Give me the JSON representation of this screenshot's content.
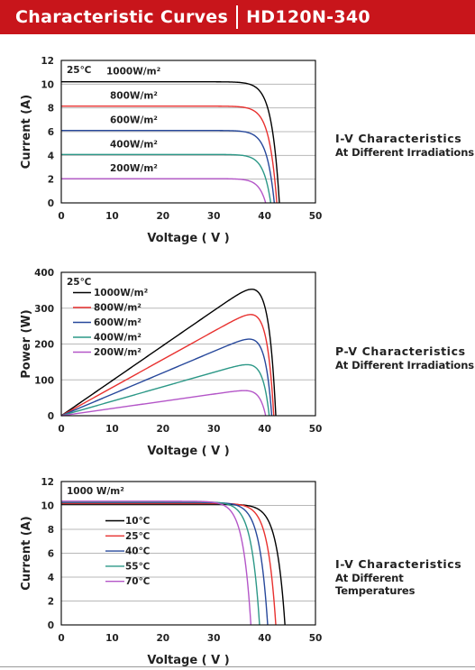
{
  "header": {
    "title": "Characteristic Curves",
    "model": "HD120N-340"
  },
  "captions": [
    {
      "line1": "I-V Characteristics",
      "line2": "At Different Irradiations"
    },
    {
      "line1": "P-V Characteristics",
      "line2": "At Different Irradiations"
    },
    {
      "line1": "I-V Characteristics",
      "line2": "At Different Temperatures"
    }
  ],
  "chart_data": [
    {
      "type": "line",
      "title": "",
      "xlabel": "Voltage ( V )",
      "ylabel": "Current (A)",
      "xlim": [
        0,
        50
      ],
      "ylim": [
        0,
        12
      ],
      "xticks": [
        0,
        10,
        20,
        30,
        40,
        50
      ],
      "yticks": [
        0,
        2,
        4,
        6,
        8,
        10,
        12
      ],
      "grid": "horizontal",
      "annotation": "25℃",
      "label_style": "inline",
      "series": [
        {
          "name": "1000W/m²",
          "color": "#000000",
          "isc": 10.2,
          "voc": 42.9,
          "vmp": 35.4
        },
        {
          "name": "800W/m²",
          "color": "#e8312f",
          "isc": 8.15,
          "voc": 42.4,
          "vmp": 35.0
        },
        {
          "name": "600W/m²",
          "color": "#27489b",
          "isc": 6.1,
          "voc": 41.9,
          "vmp": 34.6
        },
        {
          "name": "400W/m²",
          "color": "#2c9887",
          "isc": 4.08,
          "voc": 41.2,
          "vmp": 34.1
        },
        {
          "name": "200W/m²",
          "color": "#b456c8",
          "isc": 2.04,
          "voc": 40.2,
          "vmp": 33.4
        }
      ]
    },
    {
      "type": "line",
      "title": "",
      "xlabel": "Voltage ( V )",
      "ylabel": "Power (W)",
      "xlim": [
        0,
        50
      ],
      "ylim": [
        0,
        400
      ],
      "xticks": [
        0,
        10,
        20,
        30,
        40,
        50
      ],
      "yticks": [
        0,
        100,
        200,
        300,
        400
      ],
      "grid": "horizontal",
      "annotation": "25℃",
      "legend": "top-left",
      "series": [
        {
          "name": "1000W/m²",
          "color": "#000000",
          "isc": 10.2,
          "voc": 42.2,
          "vmp": 35.0,
          "pmax": 340
        },
        {
          "name": "800W/m²",
          "color": "#e8312f",
          "isc": 8.15,
          "voc": 41.8,
          "vmp": 35.0,
          "pmax": 273
        },
        {
          "name": "600W/m²",
          "color": "#27489b",
          "isc": 6.1,
          "voc": 41.4,
          "vmp": 34.8,
          "pmax": 207
        },
        {
          "name": "400W/m²",
          "color": "#2c9887",
          "isc": 4.08,
          "voc": 40.9,
          "vmp": 34.4,
          "pmax": 138
        },
        {
          "name": "200W/m²",
          "color": "#b456c8",
          "isc": 2.04,
          "voc": 40.2,
          "vmp": 34.0,
          "pmax": 68
        }
      ]
    },
    {
      "type": "line",
      "title": "",
      "xlabel": "Voltage ( V )",
      "ylabel": "Current (A)",
      "xlim": [
        0,
        50
      ],
      "ylim": [
        0,
        12
      ],
      "xticks": [
        0,
        10,
        20,
        30,
        40,
        50
      ],
      "yticks": [
        0,
        2,
        4,
        6,
        8,
        10,
        12
      ],
      "grid": "horizontal",
      "annotation": "1000 W/m²",
      "legend": "left",
      "series": [
        {
          "name": "10℃",
          "color": "#000000",
          "isc": 10.1,
          "voc": 44.0,
          "vmp": 35.8
        },
        {
          "name": "25℃",
          "color": "#e8312f",
          "isc": 10.18,
          "voc": 42.2,
          "vmp": 34.2
        },
        {
          "name": "40℃",
          "color": "#27489b",
          "isc": 10.25,
          "voc": 40.6,
          "vmp": 32.5
        },
        {
          "name": "55℃",
          "color": "#2c9887",
          "isc": 10.3,
          "voc": 39.0,
          "vmp": 31.0
        },
        {
          "name": "70℃",
          "color": "#b456c8",
          "isc": 10.35,
          "voc": 37.3,
          "vmp": 29.5
        }
      ]
    }
  ]
}
